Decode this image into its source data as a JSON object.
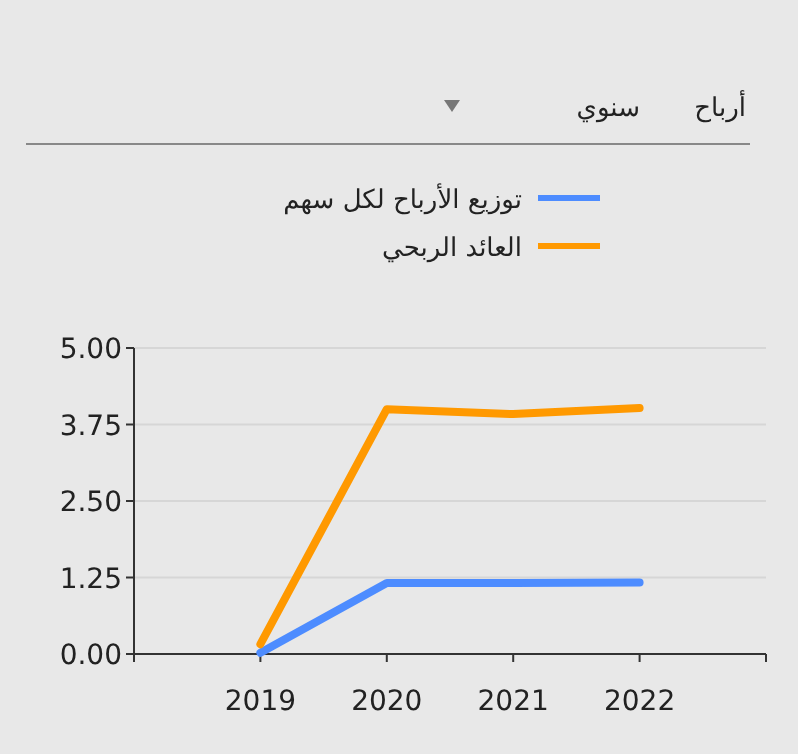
{
  "chart_data": {
    "type": "line",
    "title": "أرباح",
    "subtitle": "سنوي",
    "categories": [
      "2019",
      "2020",
      "2021",
      "2022"
    ],
    "series": [
      {
        "name": "توزيع الأرباح لكل سهم",
        "color": "#4d8cff",
        "values": [
          0.02,
          1.16,
          1.16,
          1.17
        ]
      },
      {
        "name": "العائد الربحي",
        "color": "#ff9900",
        "values": [
          0.16,
          4.0,
          3.92,
          4.02
        ]
      }
    ],
    "ylim": [
      0,
      5
    ],
    "yticks": [
      {
        "value": 0,
        "label": "0.00"
      },
      {
        "value": 1.25,
        "label": "1.25"
      },
      {
        "value": 2.5,
        "label": "2.50"
      },
      {
        "value": 3.75,
        "label": "3.75"
      },
      {
        "value": 5,
        "label": "5.00"
      }
    ],
    "grid": "y",
    "legend": "top",
    "line_style": "solid",
    "marker": "none"
  }
}
